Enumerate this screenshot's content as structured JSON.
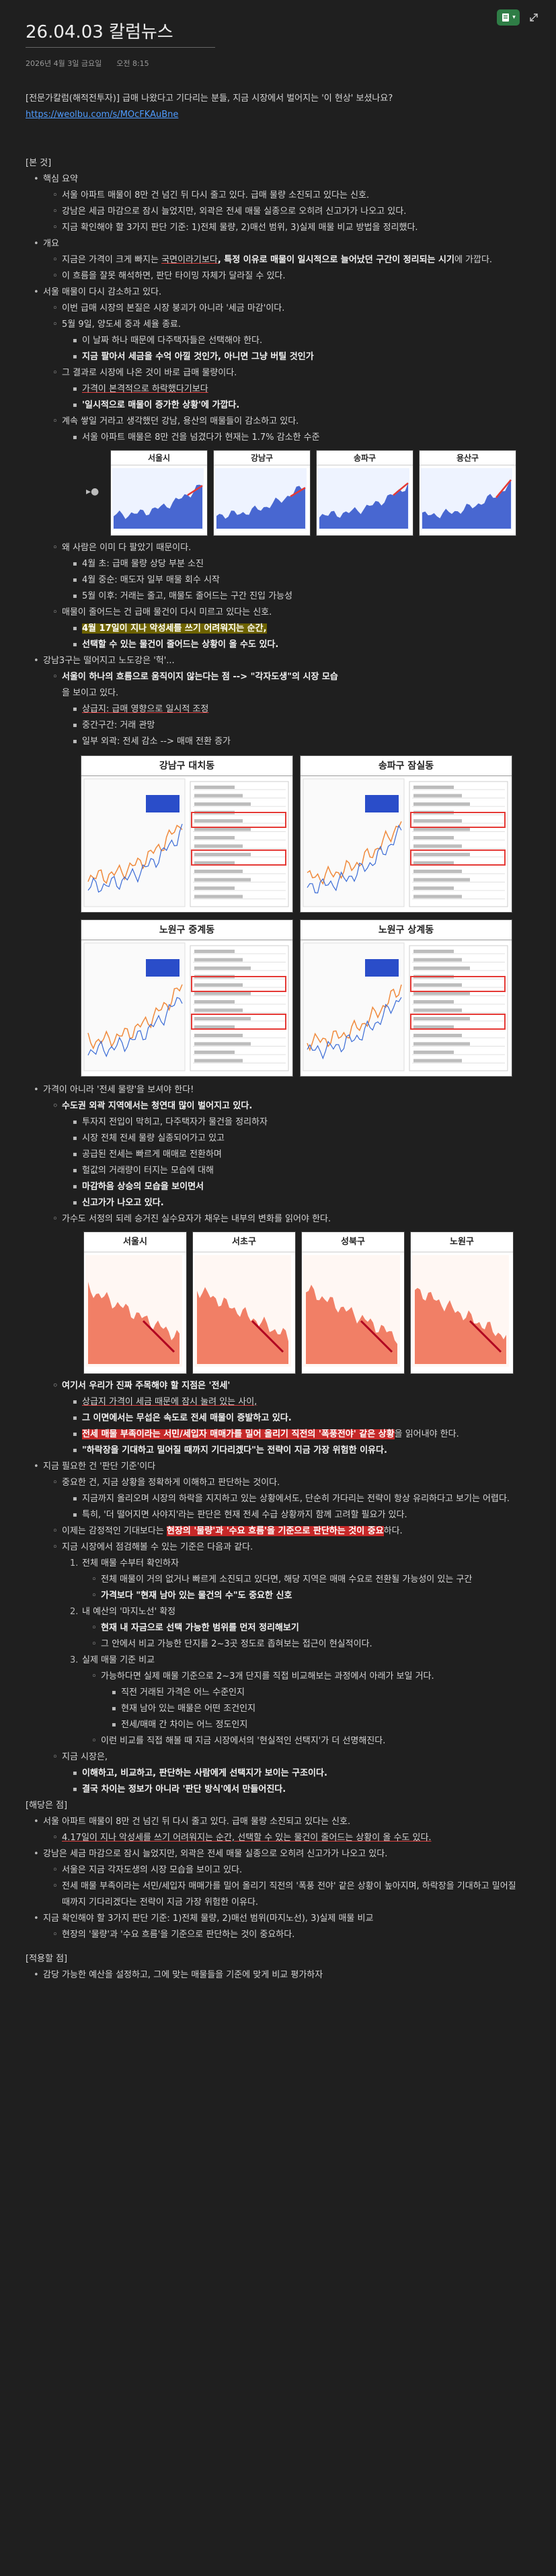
{
  "header": {
    "title": "26.04.03 칼럼뉴스",
    "date": "2026년 4월 3일 금요일",
    "time": "오전 8:15"
  },
  "intro": {
    "line": "[전문가칼럼(해적전투자)] 급매 나왔다고 기다리는 분들, 지금 시장에서 벌어지는 '이 현상' 보셨나요?",
    "link": "https://weolbu.com/s/MOcFKAuBne"
  },
  "sections": {
    "body_tag": "[본 것]",
    "outline": "핵심 요약",
    "s1": [
      "서울 아파트 매물이 8만 건 넘긴 뒤 다시 줄고 있다. 급매 물량 소진되고 있다는 신호.",
      "강남은 세금 마감으로 잠시 늘었지만, 외곽은 전세 매물 실종으로 오히려 신고가가 나오고 있다.",
      "지금 확인해야 할 3가지 판단 기준: 1)전체 물량, 2)매선 범위, 3)실제 매물 비교 방법을 정리했다."
    ],
    "overview": "개요",
    "ov1_a": "지금은 가격이 크게 빠지는 ",
    "ov1_b": "국면이라기보다",
    "ov1_c": ", 특정 이유로 매물이 일시적으로 늘어났던 구간이 정리되는 시기",
    "ov1_d": "에 가깝다.",
    "ov2": "이 흐름을 잘못 해석하면, 판단 타이밍 자체가 달라질 수 있다.",
    "dec": "서울 매물이 다시 감소하고 있다.",
    "dec_items": [
      "이번 급매 시장의 본질은 시장 붕괴가 아니라 '세금 마감'이다.",
      "5월 9일, 양도세 중과 세율 종료."
    ],
    "dec_sub": [
      "이 날짜 하나 때문에 다주택자들은 선택해야 한다.",
      "지금 팔아서 세금을 수억 아낄 것인가, 아니면 그냥 버틸 것인가"
    ],
    "dec_result_a": "그 결과로 시장에 나온 것이 바로 급매 물량이다.",
    "dec_result_sub": [
      "가격이 본격적으로 하락했다기보다",
      "'일시적으로 매물이 증가한 상황'에 가깝다."
    ],
    "dec_trend": "계속 쌓일 거라고 생각했던 강남, 용산의 매물들이 감소하고 있다.",
    "dec_trend_sub": "서울 아파트 매물은 8만 건을 넘겼다가 현재는 1.7% 감소한 수준",
    "why": "왜 사람은 이미 다 팔았기 때문이다.",
    "why_sub": [
      "4월 초: 급매 물량 상당 부분 소진",
      "4월 중순: 매도자 일부 매물 회수 시작",
      "5월 이후: 거래는 줄고, 매물도 줄어드는 구간 진입 가능성"
    ],
    "supply": "매물이 줄어드는 건 급매 물건이 다시 미르고 있다는 신호.",
    "supply_sub": [
      "4월 17일이 지나 악성세를 쓰기 어려워지는 순간,",
      "선택할 수 있는 물건이 줄어드는 상황이 올 수도 있다."
    ],
    "gangbuk_a": "강남3구는 떨어지고 노도강은 '헉'...",
    "gangbuk_b": "서울이 하나의 흐름으로 움직이지 않는다는 점 --> \"각자도생\"의 시장 모습",
    "gangbuk_c": "을 보이고 있다.",
    "gangbuk_sub": [
      "상급지: 급매 영향으로 일시적 조정",
      "중간구간: 거래 관망",
      "일부 외곽: 전세 감소 --> 매매 전환 증가"
    ],
    "price": "가격이 아니라 '전세 물량'을 보셔야 한다!",
    "price_a": "수도권 외곽 지역에서는 청연대 많이 벌어지고 있다.",
    "price_sub": [
      "투자지 전입이 막히고, 다주택자가 물건을 정리하자",
      "시장 전체 전세 물량 실종되어가고 있고",
      "공급된 전세는 빠르게 매매로 전환하며",
      "헐값의 거래량이 터지는 모습에 대해",
      "마감하음 상승의 모습을 보이면서",
      "신고가가 나오고 있다."
    ],
    "price_b": "가수도 서정의 되레 승거진 실수요자가 채우는 내부의 변화를 읽어야 한다.",
    "focus": "여기서 우리가 진짜 주목해야 할 지점은 '전세'",
    "focus_sub": [
      "상급지 가격이 세금 때문에 잠시 눌려 있는 사이,",
      "그 이면에서는 무섭은 속도로 전세 매물이 증발하고 있다."
    ],
    "focus_red": "전세 매물 부족이라는 서민/세입자 매매가를 밀어 올리기 직전의 '폭풍전야' 같은 상황",
    "focus_red_tail": "을 읽어내야 한다.",
    "focus_quote": "\"하락장을 기대하고 밀어질 때까지 기다리겠다\"는 전략이 지금 가장 위험한 이유다.",
    "now": "지금 필요한 건 '판단 기준'이다",
    "now_sub1": "중요한 건, 지금 상황을 정확하게 이해하고 판단하는 것이다.",
    "now_sub1_x": [
      "지금까지 올리오며 시장의 하락을 지지하고 있는 상황에서도, 단순히 가다리는 전략이 항상 유리하다고 보기는 어렵다.",
      "특히, '더 떨어지면 사야지'라는 판단은 현재 전세 수급 상황까지 함께 고려할 필요가 있다."
    ],
    "now_sub2_a": "이제는 감정적인 기대보다는 ",
    "now_sub2_b": "현장의 '물량'과 '수요 흐름'을 기준으로 판단하는 것이 중요",
    "now_sub2_c": "하다.",
    "now_sub3": "지금 시장에서 점검해볼 수 있는 기준은 다음과 같다.",
    "crit": [
      {
        "n": "1.",
        "t": "전체 매물 수부터 확인하자",
        "sub": [
          "전체 매물이 거의 없거나 빠르게 소진되고 있다면, 해당 지역은 매매 수요로 전환될 가능성이 있는 구간",
          "가격보다 \"현재 남아 있는 물건의 수\"도 중요한 신호"
        ]
      },
      {
        "n": "2.",
        "t": "내 예산의 '마지노선' 확정",
        "sub": [
          "현재 내 자금으로 선택 가능한 범위를 먼저 정리해보기",
          "그 안에서 비교 가능한 단지를 2~3곳 정도로 좁혀보는 접근이 현실적이다."
        ]
      },
      {
        "n": "3.",
        "t": "실제 매물 기준 비교",
        "sub": [
          "가능하다면 실제 매물 기준으로 2~3개 단지를 직접 비교해보는 과정에서 아래가 보일 거다."
        ],
        "sub2": [
          "직전 거래된 가격은 어느 수준인지",
          "현재 남아 있는 매물은 어떤 조건인지",
          "전세/매매 간 차이는 어느 정도인지"
        ],
        "tail": "이런 비교를 직접 해볼 때 지금 시장에서의 '현실적인 선택지'가 더 선명해진다."
      }
    ],
    "market": "지금 시장은,",
    "market_sub": [
      "이해하고, 비교하고, 판단하는 사람에게 선택지가 보이는 구조이다.",
      "결국 차이는 정보가 아니라 '판단 방식'에서 만들어진다."
    ],
    "fact_tag": "[해당은 점]",
    "facts": [
      "서울 아파트 매물이 8만 건 넘긴 뒤 다시 줄고 있다. 급매 물량 소진되고 있다는 신호.",
      "4.17일이 지나 악성세를 쓰기 어려워지는 순간, 선택할 수 있는 물건이 줄어드는 상황이 올 수도 있다.",
      "강남은 세금 마감으로 잠시 늘었지만, 외곽은 전세 매물 실종으로 오히려 신고가가 나오고 있다."
    ],
    "facts_sub": [
      "서울은 지금 각자도생의 시장 모습을 보이고 있다.",
      "전세 매물 부족이라는 서민/세입자 매매가를 밀어 올리기 직전의 '폭풍 전야' 같은 상황이 높아지며, 하락장을 기대하고 밀어질 때까지 기다리겠다는 전략이 지금 가장 위험한 이유다."
    ],
    "facts_last": "지금 확인해야 할 3가지 판단 기준: 1)전체 물량, 2)매선 범위(마지노선), 3)실제 매물 비교",
    "facts_last_sub": "현장의 '물량'과 '수요 흐름'을 기준으로 판단하는 것이 중요하다.",
    "apply_tag": "[적용할 점]",
    "apply": "감당 가능한 예산을 설정하고, 그에 맞는 매물들을 기준에 맞게 비교 평가하자"
  },
  "charts": {
    "row1": [
      "서울시",
      "강남구",
      "송파구",
      "용산구"
    ],
    "grid": [
      "강남구 대치동",
      "송파구 잠실동",
      "노원구 중계동",
      "노원구 상계동"
    ],
    "row2": [
      "서울시",
      "서초구",
      "성북구",
      "노원구"
    ]
  },
  "colors": {
    "accent_blue": "#2a4dc9",
    "accent_red": "#e53935",
    "highlight": "#6d6200"
  },
  "icons": [
    "notebook-icon",
    "expand-icon",
    "bullet-icon"
  ]
}
